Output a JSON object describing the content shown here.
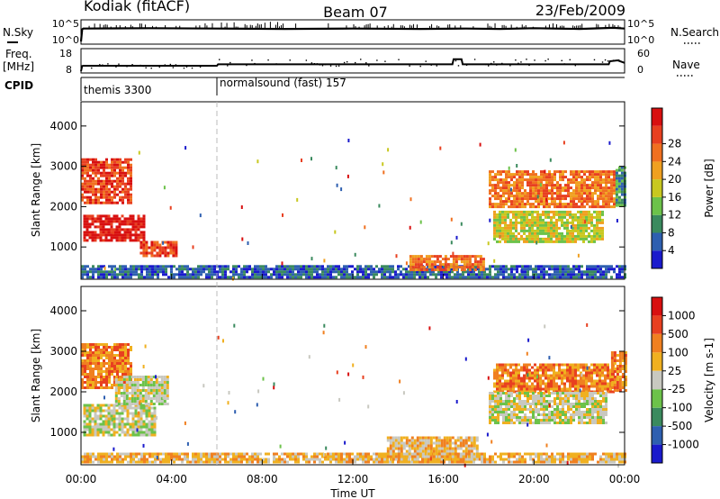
{
  "header": {
    "station": "Kodiak (fitACF)",
    "beam": "Beam 07",
    "date": "23/Feb/2009"
  },
  "left_labels": {
    "nsky": "N.Sky",
    "freq": "Freq.",
    "freq_unit": "[MHz]",
    "cpid": "CPID"
  },
  "right_labels": {
    "nsearch": "N.Search",
    "nave": "Nave"
  },
  "cpid_segments": [
    {
      "label": "themis 3300",
      "start_hour": 0.0
    },
    {
      "label": "normalsound (fast) 157",
      "start_hour": 6.0
    }
  ],
  "chart_data": [
    {
      "panel": "noise",
      "type": "line",
      "ylabel_left": "N.Sky",
      "ylabel_right": "N.Search",
      "left_ticks": [
        "10^5",
        "10^0"
      ],
      "right_ticks": [
        "10^5",
        "10^0"
      ],
      "x_range_hours": [
        0,
        24
      ],
      "series": [
        {
          "x": [
            0,
            0.05,
            0.1,
            3,
            6,
            9,
            12,
            15,
            17,
            18.5,
            20,
            22,
            23.5,
            24
          ],
          "y": [
            0,
            3.2,
            3.4,
            3.5,
            3.4,
            3.3,
            3.4,
            3.3,
            3.4,
            3.3,
            3.5,
            3.3,
            3.6,
            3.4
          ]
        }
      ]
    },
    {
      "panel": "frequency",
      "type": "line",
      "ylabel_left": "Freq. [MHz]",
      "ylabel_right": "Nave",
      "left_ticks": [
        "18",
        "8"
      ],
      "right_ticks": [
        "60",
        "0"
      ],
      "ylim_left": [
        8,
        18
      ],
      "ylim_right": [
        0,
        60
      ],
      "x_range_hours": [
        0,
        24
      ],
      "series": [
        {
          "name": "Freq.",
          "x": [
            0,
            0.05,
            0.1,
            6,
            6.05,
            16.4,
            16.45,
            16.8,
            16.85,
            23.3,
            23.35,
            23.7,
            24
          ],
          "y": [
            8,
            10.5,
            10.6,
            10.6,
            11.3,
            11.3,
            13.8,
            13.8,
            11.3,
            11.3,
            12.8,
            13.2,
            12.0
          ]
        }
      ]
    },
    {
      "panel": "power",
      "type": "heatmap",
      "ylabel": "Slant Range [km]",
      "y_ticks": [
        "1000",
        "2000",
        "3000",
        "4000"
      ],
      "ylim": [
        200,
        4600
      ],
      "colorbar_label": "Power [dB]",
      "colorbar_ticks": [
        "4",
        "8",
        "12",
        "16",
        "20",
        "24",
        "28"
      ],
      "colorbar_colors": [
        "#1a1acc",
        "#2e5fb0",
        "#3a8a5e",
        "#6cc24a",
        "#c8c820",
        "#f0a020",
        "#f07020",
        "#e84020",
        "#d81010"
      ],
      "patches": [
        {
          "x0": 0.0,
          "x1": 2.2,
          "y0": 2100,
          "y1": 3200,
          "level": 7
        },
        {
          "x0": 0.1,
          "x1": 2.8,
          "y0": 1150,
          "y1": 1800,
          "level": 8
        },
        {
          "x0": 2.6,
          "x1": 4.2,
          "y0": 800,
          "y1": 1150,
          "level": 7
        },
        {
          "x0": 0.0,
          "x1": 24.0,
          "y0": 250,
          "y1": 550,
          "level": 1
        },
        {
          "x0": 14.5,
          "x1": 17.8,
          "y0": 400,
          "y1": 800,
          "level": 6
        },
        {
          "x0": 18.0,
          "x1": 23.6,
          "y0": 2000,
          "y1": 2900,
          "level": 6
        },
        {
          "x0": 18.2,
          "x1": 23.0,
          "y0": 1100,
          "y1": 1900,
          "level": 4
        },
        {
          "x0": 23.6,
          "x1": 24.0,
          "y0": 2000,
          "y1": 3000,
          "level": 2
        }
      ]
    },
    {
      "panel": "velocity",
      "type": "heatmap",
      "ylabel": "Slant Range [km]",
      "y_ticks": [
        "1000",
        "2000",
        "3000",
        "4000"
      ],
      "ylim": [
        200,
        4600
      ],
      "colorbar_label": "Velocity [m s-1]",
      "colorbar_ticks": [
        "1000",
        "500",
        "100",
        "25",
        "-25",
        "-100",
        "-500",
        "-1000"
      ],
      "colorbar_colors": [
        "#1a1acc",
        "#2e5fb0",
        "#3a8a5e",
        "#6cc24a",
        "#c8c8c0",
        "#f0b020",
        "#f08020",
        "#e84020",
        "#d81010"
      ],
      "patches": [
        {
          "x0": 0.0,
          "x1": 2.2,
          "y0": 2100,
          "y1": 3200,
          "level": 6
        },
        {
          "x0": 0.1,
          "x1": 3.2,
          "y0": 900,
          "y1": 1700,
          "level": 4
        },
        {
          "x0": 1.5,
          "x1": 3.8,
          "y0": 1700,
          "y1": 2400,
          "level": 4
        },
        {
          "x0": 0.0,
          "x1": 24.0,
          "y0": 250,
          "y1": 500,
          "level": 5
        },
        {
          "x0": 13.5,
          "x1": 17.5,
          "y0": 350,
          "y1": 900,
          "level": 5
        },
        {
          "x0": 18.2,
          "x1": 23.5,
          "y0": 2000,
          "y1": 2700,
          "level": 6
        },
        {
          "x0": 18.0,
          "x1": 23.2,
          "y0": 1200,
          "y1": 2000,
          "level": 4
        },
        {
          "x0": 23.4,
          "x1": 24.0,
          "y0": 2000,
          "y1": 3000,
          "level": 6
        }
      ]
    }
  ],
  "x_axis": {
    "label": "Time UT",
    "ticks": [
      "00:00",
      "04:00",
      "08:00",
      "12:00",
      "16:00",
      "20:00",
      "00:00"
    ]
  }
}
